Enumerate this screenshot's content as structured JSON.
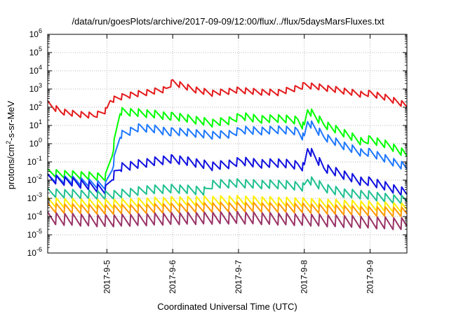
{
  "chart_data": {
    "type": "line",
    "title": "/data/run/goesPlots/archive/2017-09-09/12:00/flux/../flux/5daysMarsFluxes.txt",
    "xlabel": "Coordinated Universal Time (UTC)",
    "ylabel_parts": {
      "pre": "protons/cm",
      "sup": "2",
      "post": "-s-sr-MeV"
    },
    "yscale": "log",
    "ylim": [
      1e-06,
      1000000.0
    ],
    "xlim": [
      4.1,
      9.56
    ],
    "grid": true,
    "legend": "none",
    "x_ticks": [
      {
        "x": 5,
        "label": "2017-9-5"
      },
      {
        "x": 6,
        "label": "2017-9-6"
      },
      {
        "x": 7,
        "label": "2017-9-7"
      },
      {
        "x": 8,
        "label": "2017-9-8"
      },
      {
        "x": 9,
        "label": "2017-9-9"
      }
    ],
    "y_ticks": [
      {
        "v": 1e-06,
        "base": "10",
        "exp": "-6"
      },
      {
        "v": 1e-05,
        "base": "10",
        "exp": "-5"
      },
      {
        "v": 0.0001,
        "base": "10",
        "exp": "-4"
      },
      {
        "v": 0.001,
        "base": "10",
        "exp": "-3"
      },
      {
        "v": 0.01,
        "base": "10",
        "exp": "-2"
      },
      {
        "v": 0.1,
        "base": "10",
        "exp": "-1"
      },
      {
        "v": 1.0,
        "base": "10",
        "exp": "0"
      },
      {
        "v": 10.0,
        "base": "10",
        "exp": "1"
      },
      {
        "v": 100.0,
        "base": "10",
        "exp": "2"
      },
      {
        "v": 1000.0,
        "base": "10",
        "exp": "3"
      },
      {
        "v": 10000.0,
        "base": "10",
        "exp": "4"
      },
      {
        "v": 100000.0,
        "base": "10",
        "exp": "5"
      },
      {
        "v": 1000000.0,
        "base": "10",
        "exp": "6"
      }
    ],
    "series": [
      {
        "color": "#e41a1c",
        "x": [
          4.1,
          4.3,
          4.5,
          4.8,
          5.0,
          5.05,
          5.3,
          5.6,
          5.9,
          6.0,
          6.3,
          6.6,
          6.9,
          7.0,
          7.3,
          7.6,
          7.95,
          8.0,
          8.3,
          8.6,
          8.9,
          9.0,
          9.3,
          9.56
        ],
        "y": [
          150,
          60,
          45,
          35,
          70,
          250,
          450,
          650,
          1000,
          2500,
          1000,
          600,
          800,
          900,
          700,
          650,
          1300,
          1700,
          1200,
          800,
          500,
          600,
          300,
          120
        ]
      },
      {
        "color": "#00ff00",
        "x": [
          4.1,
          4.5,
          4.98,
          5.08,
          5.2,
          5.5,
          5.8,
          5.95,
          6.0,
          6.3,
          6.6,
          6.9,
          7.05,
          7.3,
          7.6,
          7.9,
          8.0,
          8.05,
          8.3,
          8.6,
          8.9,
          9.0,
          9.3,
          9.56
        ],
        "y": [
          0.025,
          0.02,
          0.015,
          0.3,
          60,
          50,
          40,
          30,
          35,
          22,
          14,
          20,
          35,
          22,
          25,
          20,
          8,
          80,
          12,
          4,
          1.2,
          1.8,
          0.8,
          0.25
        ]
      },
      {
        "color": "#1e78ff",
        "x": [
          4.1,
          4.5,
          4.98,
          5.08,
          5.2,
          5.5,
          5.8,
          5.95,
          6.0,
          6.3,
          6.6,
          6.9,
          7.05,
          7.3,
          7.6,
          7.9,
          8.0,
          8.05,
          8.3,
          8.6,
          8.9,
          9.0,
          9.3,
          9.56
        ],
        "y": [
          0.013,
          0.01,
          0.005,
          0.05,
          3,
          8,
          6,
          4,
          5,
          4,
          3,
          3.5,
          6,
          5,
          6,
          5,
          2,
          18,
          2.5,
          0.8,
          0.3,
          0.35,
          0.12,
          0.05
        ]
      },
      {
        "color": "#1010e0",
        "x": [
          4.1,
          4.5,
          4.98,
          5.08,
          5.2,
          5.5,
          5.8,
          6.0,
          6.3,
          6.6,
          6.9,
          7.05,
          7.3,
          7.6,
          7.9,
          8.0,
          8.05,
          8.3,
          8.6,
          8.9,
          9.0,
          9.3,
          9.56
        ],
        "y": [
          0.012,
          0.008,
          0.003,
          0.015,
          0.05,
          0.08,
          0.12,
          0.15,
          0.1,
          0.06,
          0.08,
          0.12,
          0.08,
          0.09,
          0.07,
          0.05,
          0.6,
          0.05,
          0.02,
          0.008,
          0.009,
          0.004,
          0.002
        ]
      },
      {
        "color": "#20c090",
        "x": [
          4.1,
          4.5,
          5.0,
          5.3,
          5.6,
          6.0,
          6.3,
          6.5,
          6.6,
          7.0,
          7.3,
          7.6,
          7.9,
          8.0,
          8.05,
          8.3,
          8.6,
          9.0,
          9.3,
          9.56
        ],
        "y": [
          0.002,
          0.0018,
          0.0015,
          0.002,
          0.003,
          0.0035,
          0.003,
          0.0025,
          0.006,
          0.007,
          0.006,
          0.006,
          0.005,
          0.004,
          0.012,
          0.004,
          0.002,
          0.0015,
          0.001,
          0.0008
        ]
      },
      {
        "color": "#ffee00",
        "x": [
          4.1,
          5.0,
          6.0,
          7.0,
          8.0,
          9.0,
          9.56
        ],
        "y": [
          0.0006,
          0.0005,
          0.0007,
          0.0008,
          0.0006,
          0.0004,
          0.0003
        ]
      },
      {
        "color": "#ff9900",
        "x": [
          4.1,
          5.0,
          6.0,
          7.0,
          8.0,
          9.0,
          9.56
        ],
        "y": [
          0.0003,
          0.00025,
          0.0003,
          0.00035,
          0.0003,
          0.0002,
          0.00018
        ]
      },
      {
        "color": "#993366",
        "x": [
          4.1,
          5.0,
          6.0,
          7.0,
          8.0,
          9.0,
          9.56
        ],
        "y": [
          8e-05,
          6e-05,
          8e-05,
          9e-05,
          7e-05,
          5e-05,
          4e-05
        ]
      }
    ]
  }
}
